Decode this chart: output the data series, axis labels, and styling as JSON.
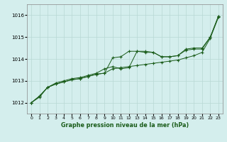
{
  "background_color": "#d4eeed",
  "grid_color": "#b8d8d4",
  "line_color": "#1a5c1a",
  "title": "Graphe pression niveau de la mer (hPa)",
  "xlim": [
    -0.5,
    23.5
  ],
  "ylim": [
    1011.5,
    1016.5
  ],
  "yticks": [
    1012,
    1013,
    1014,
    1015,
    1016
  ],
  "xticks": [
    0,
    1,
    2,
    3,
    4,
    5,
    6,
    7,
    8,
    9,
    10,
    11,
    12,
    13,
    14,
    15,
    16,
    17,
    18,
    19,
    20,
    21,
    22,
    23
  ],
  "series1_x": [
    0,
    1,
    2,
    3,
    4,
    5,
    6,
    7,
    8,
    9,
    10,
    11,
    12,
    13,
    14,
    15,
    16,
    17,
    18,
    19,
    20,
    21,
    22,
    23
  ],
  "series1_y": [
    1012.0,
    1012.25,
    1012.7,
    1012.85,
    1012.95,
    1013.05,
    1013.1,
    1013.2,
    1013.3,
    1013.35,
    1013.55,
    1013.6,
    1013.65,
    1013.7,
    1013.75,
    1013.8,
    1013.85,
    1013.9,
    1013.95,
    1014.05,
    1014.15,
    1014.3,
    1014.95,
    1015.9
  ],
  "series2_x": [
    0,
    1,
    2,
    3,
    4,
    5,
    6,
    7,
    8,
    9,
    10,
    11,
    12,
    13,
    14,
    15,
    16,
    17,
    18,
    19,
    20,
    21,
    22,
    23
  ],
  "series2_y": [
    1012.0,
    1012.3,
    1012.7,
    1012.9,
    1013.0,
    1013.1,
    1013.15,
    1013.25,
    1013.35,
    1013.55,
    1013.65,
    1013.55,
    1013.6,
    1014.35,
    1014.35,
    1014.3,
    1014.1,
    1014.1,
    1014.15,
    1014.4,
    1014.45,
    1014.45,
    1015.0,
    1015.95
  ],
  "series3_x": [
    0,
    1,
    2,
    3,
    4,
    5,
    6,
    7,
    8,
    9,
    10,
    11,
    12,
    13,
    14,
    15,
    16,
    17,
    18,
    19,
    20,
    21,
    22,
    23
  ],
  "series3_y": [
    1012.0,
    1012.3,
    1012.7,
    1012.85,
    1012.95,
    1013.05,
    1013.1,
    1013.2,
    1013.3,
    1013.35,
    1014.05,
    1014.1,
    1014.35,
    1014.35,
    1014.3,
    1014.3,
    1014.1,
    1014.1,
    1014.15,
    1014.45,
    1014.5,
    1014.5,
    1015.0,
    1015.95
  ]
}
